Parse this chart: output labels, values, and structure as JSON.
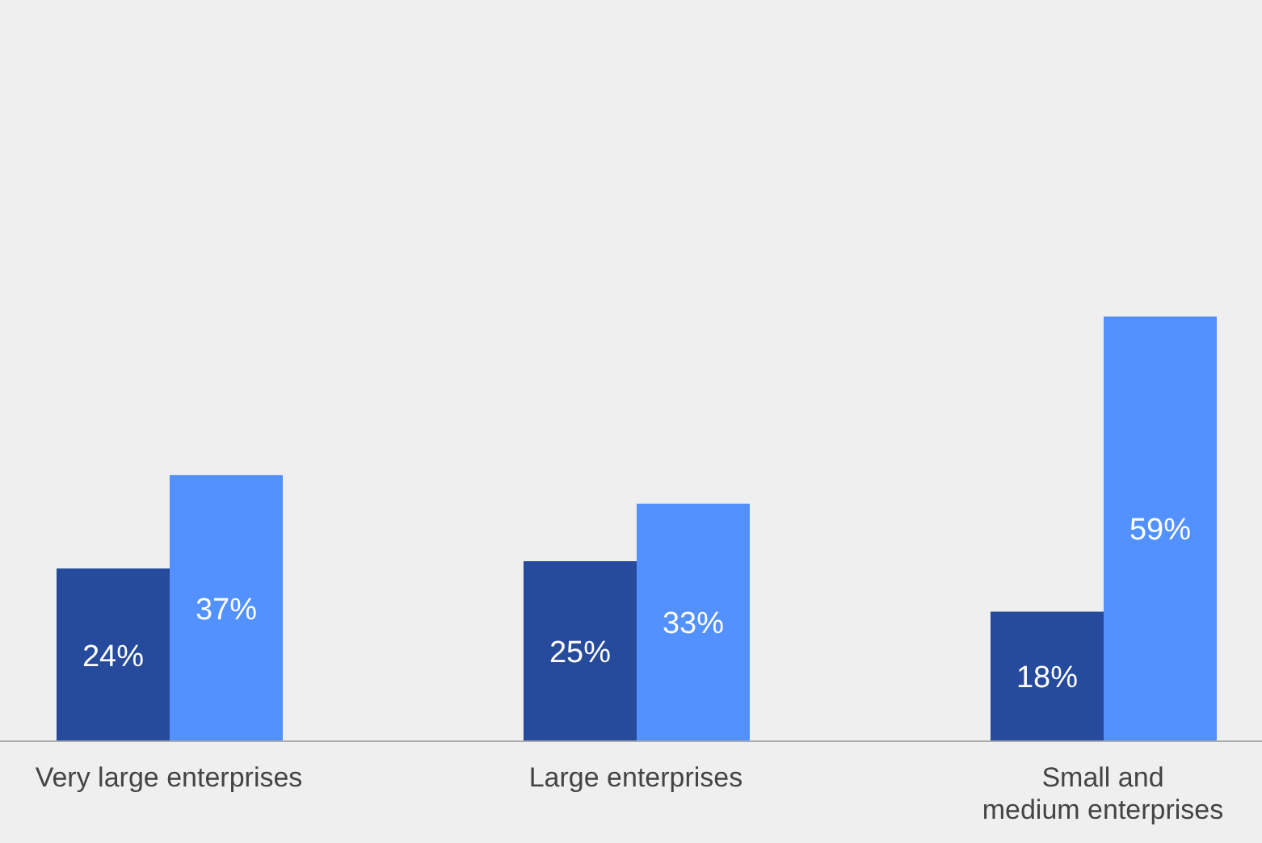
{
  "chart_data": {
    "type": "bar",
    "categories": [
      "Very large enterprises",
      "Large enterprises",
      "Small and\nmedium enterprises"
    ],
    "series": [
      {
        "color": "#264a9c",
        "values": [
          24,
          25,
          18
        ],
        "value_labels": [
          "24%",
          "25%",
          "18%"
        ]
      },
      {
        "color": "#5291ff",
        "values": [
          37,
          33,
          59
        ],
        "value_labels": [
          "37%",
          "33%",
          "59%"
        ]
      }
    ],
    "tick_labels": "x"
  }
}
